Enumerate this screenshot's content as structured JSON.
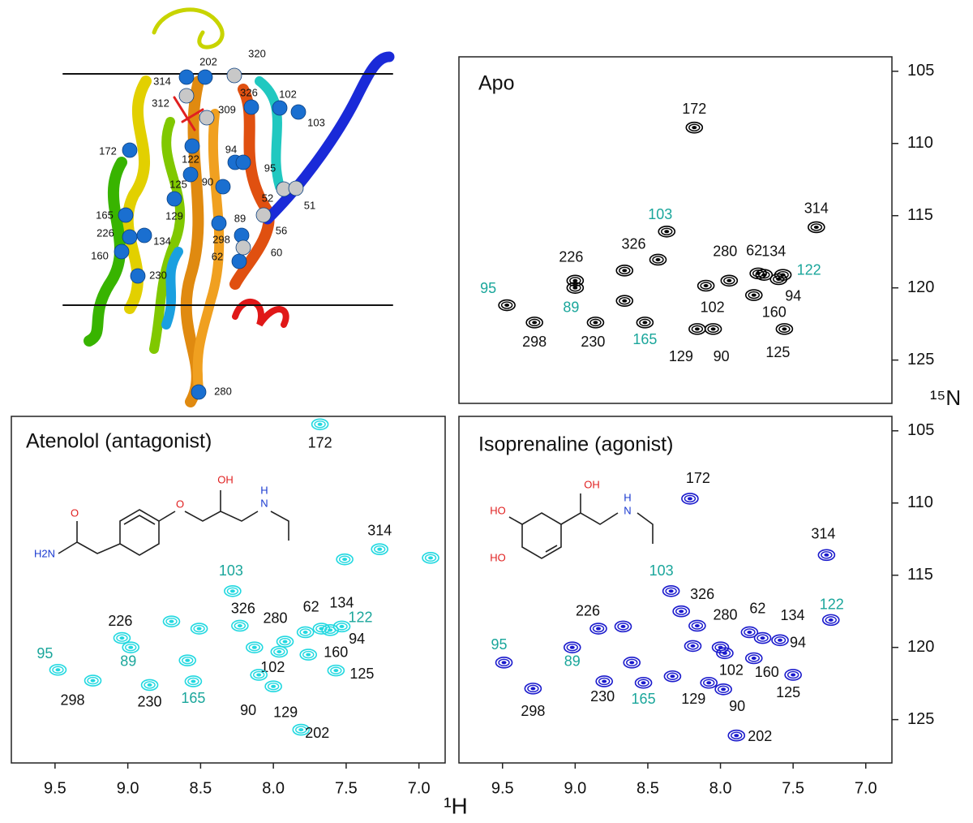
{
  "structure": {
    "labels": [
      "320",
      "202",
      "314",
      "326",
      "102",
      "312",
      "309",
      "103",
      "172",
      "94",
      "122",
      "95",
      "125",
      "90",
      "52",
      "51",
      "129",
      "89",
      "165",
      "226",
      "134",
      "56",
      "160",
      "298",
      "62",
      "60",
      "230",
      "280"
    ]
  },
  "axes": {
    "x_label": "¹H",
    "y_label": "¹⁵N"
  },
  "chart_data": [
    {
      "type": "scatter",
      "title": "Apo",
      "color": "#000000",
      "label_color": "#111111",
      "xlim": [
        9.8,
        6.82
      ],
      "ylim": [
        128,
        104
      ],
      "yticks": [
        105,
        110,
        115,
        120,
        125
      ],
      "points": [
        {
          "label": "172",
          "x": 8.18,
          "y": 108.9
        },
        {
          "label": "314",
          "x": 7.34,
          "y": 115.8
        },
        {
          "label": "103",
          "x": 8.37,
          "y": 116.1,
          "label_color": "#1aa69b"
        },
        {
          "label": "326",
          "x": 8.43,
          "y": 118.05
        },
        {
          "label": "226",
          "x": 9.0,
          "y": 119.5
        },
        {
          "label": null,
          "x": 8.66,
          "y": 118.8
        },
        {
          "label": "280",
          "x": 7.94,
          "y": 119.5
        },
        {
          "label": "62",
          "x": 7.74,
          "y": 119.0
        },
        {
          "label": "134",
          "x": 7.7,
          "y": 119.1
        },
        {
          "label": "122",
          "x": 7.57,
          "y": 119.1,
          "label_color": "#1aa69b"
        },
        {
          "label": "94",
          "x": 7.6,
          "y": 119.4
        },
        {
          "label": "160",
          "x": 7.77,
          "y": 120.5
        },
        {
          "label": "102",
          "x": 8.1,
          "y": 119.85
        },
        {
          "label": "95",
          "x": 9.47,
          "y": 121.2,
          "label_color": "#1aa69b"
        },
        {
          "label": "89",
          "x": 9.0,
          "y": 120.0,
          "label_color": "#1aa69b"
        },
        {
          "label": null,
          "x": 8.66,
          "y": 120.9
        },
        {
          "label": "298",
          "x": 9.28,
          "y": 122.4
        },
        {
          "label": "230",
          "x": 8.86,
          "y": 122.4
        },
        {
          "label": "165",
          "x": 8.52,
          "y": 122.4,
          "label_color": "#1aa69b"
        },
        {
          "label": "129",
          "x": 8.16,
          "y": 122.85
        },
        {
          "label": "90",
          "x": 8.05,
          "y": 122.85
        },
        {
          "label": "125",
          "x": 7.56,
          "y": 122.85
        }
      ]
    },
    {
      "type": "scatter",
      "title": "Atenolol (antagonist)",
      "color": "#22d8e0",
      "label_color": "#111111",
      "xlim": [
        9.8,
        6.82
      ],
      "ylim": [
        128,
        104
      ],
      "xticks": [
        9.5,
        {
          "value": 9,
          "label": "9.0"
        },
        8.5,
        {
          "value": 8,
          "label": "8.0"
        },
        7.5,
        {
          "value": 7,
          "label": "7.0"
        }
      ],
      "molecule_labels": [
        "O",
        "H2N",
        "O",
        "OH",
        "N",
        "H"
      ],
      "points": [
        {
          "label": "172",
          "x": 7.68,
          "y": 104.55
        },
        {
          "label": "314",
          "x": 7.27,
          "y": 113.2
        },
        {
          "label": null,
          "x": 7.51,
          "y": 113.9
        },
        {
          "label": null,
          "x": 6.92,
          "y": 113.8
        },
        {
          "label": "103",
          "x": 8.28,
          "y": 116.1,
          "label_color": "#1aa69b"
        },
        {
          "label": "326",
          "x": 8.23,
          "y": 118.5
        },
        {
          "label": null,
          "x": 8.51,
          "y": 118.7
        },
        {
          "label": null,
          "x": 8.7,
          "y": 118.2
        },
        {
          "label": "226",
          "x": 9.04,
          "y": 119.35
        },
        {
          "label": "89",
          "x": 8.98,
          "y": 120.0,
          "label_color": "#1aa69b"
        },
        {
          "label": "95",
          "x": 9.48,
          "y": 121.55,
          "label_color": "#1aa69b"
        },
        {
          "label": "298",
          "x": 9.24,
          "y": 122.3
        },
        {
          "label": "230",
          "x": 8.85,
          "y": 122.6
        },
        {
          "label": "165",
          "x": 8.55,
          "y": 122.35,
          "label_color": "#1aa69b"
        },
        {
          "label": null,
          "x": 8.59,
          "y": 120.9
        },
        {
          "label": "280",
          "x": 7.92,
          "y": 119.6
        },
        {
          "label": "62",
          "x": 7.78,
          "y": 118.95
        },
        {
          "label": "134",
          "x": 7.67,
          "y": 118.7
        },
        {
          "label": "122",
          "x": 7.53,
          "y": 118.55,
          "label_color": "#1aa69b"
        },
        {
          "label": "94",
          "x": 7.61,
          "y": 118.8
        },
        {
          "label": "102",
          "x": 7.96,
          "y": 120.3
        },
        {
          "label": "160",
          "x": 7.76,
          "y": 120.5
        },
        {
          "label": "125",
          "x": 7.57,
          "y": 121.6
        },
        {
          "label": "90",
          "x": 8.1,
          "y": 121.9
        },
        {
          "label": "129",
          "x": 8.0,
          "y": 122.7
        },
        {
          "label": "202",
          "x": 7.81,
          "y": 125.7
        },
        {
          "label": null,
          "x": 8.13,
          "y": 120.0
        }
      ]
    },
    {
      "type": "scatter",
      "title": "Isoprenaline (agonist)",
      "color": "#1a1acc",
      "label_color": "#111111",
      "xlim": [
        9.8,
        6.82
      ],
      "ylim": [
        128,
        104
      ],
      "xticks": [
        9.5,
        {
          "value": 9,
          "label": "9.0"
        },
        8.5,
        {
          "value": 8,
          "label": "8.0"
        },
        7.5,
        {
          "value": 7,
          "label": "7.0"
        }
      ],
      "yticks": [
        105,
        110,
        115,
        120,
        125
      ],
      "molecule_labels": [
        "HO",
        "HO",
        "OH",
        "N",
        "H"
      ],
      "points": [
        {
          "label": "172",
          "x": 8.21,
          "y": 109.7
        },
        {
          "label": "314",
          "x": 7.27,
          "y": 113.6
        },
        {
          "label": "103",
          "x": 8.34,
          "y": 116.1,
          "label_color": "#1aa69b"
        },
        {
          "label": "326",
          "x": 8.27,
          "y": 117.5
        },
        {
          "label": "122",
          "x": 7.24,
          "y": 118.1,
          "label_color": "#1aa69b"
        },
        {
          "label": "226",
          "x": 8.84,
          "y": 118.7
        },
        {
          "label": null,
          "x": 8.67,
          "y": 118.55
        },
        {
          "label": "95",
          "x": 9.49,
          "y": 121.05,
          "label_color": "#1aa69b"
        },
        {
          "label": "89",
          "x": 9.02,
          "y": 120.0,
          "label_color": "#1aa69b"
        },
        {
          "label": "298",
          "x": 9.29,
          "y": 122.85
        },
        {
          "label": "230",
          "x": 8.8,
          "y": 122.35
        },
        {
          "label": "165",
          "x": 8.53,
          "y": 122.45,
          "label_color": "#1aa69b"
        },
        {
          "label": null,
          "x": 8.61,
          "y": 121.05
        },
        {
          "label": null,
          "x": 8.33,
          "y": 122.0
        },
        {
          "label": "129",
          "x": 8.08,
          "y": 122.45
        },
        {
          "label": "90",
          "x": 7.98,
          "y": 122.9
        },
        {
          "label": "280",
          "x": 8.0,
          "y": 120.0
        },
        {
          "label": "62",
          "x": 7.8,
          "y": 118.95
        },
        {
          "label": "134",
          "x": 7.71,
          "y": 119.35
        },
        {
          "label": "94",
          "x": 7.59,
          "y": 119.5
        },
        {
          "label": "160",
          "x": 7.77,
          "y": 120.75
        },
        {
          "label": "125",
          "x": 7.5,
          "y": 121.9
        },
        {
          "label": "102",
          "x": 7.97,
          "y": 120.4
        },
        {
          "label": "202",
          "x": 7.89,
          "y": 126.1
        },
        {
          "label": null,
          "x": 8.19,
          "y": 119.9
        },
        {
          "label": null,
          "x": 8.16,
          "y": 118.5
        }
      ]
    }
  ]
}
